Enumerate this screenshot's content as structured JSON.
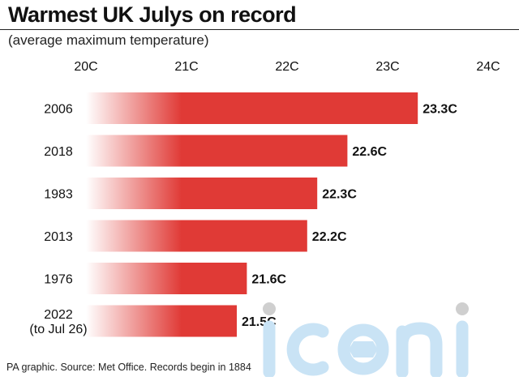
{
  "title": "Warmest UK Julys on record",
  "subtitle": "(average maximum temperature)",
  "source": "PA graphic. Source: Met Office. Records begin in 1884",
  "watermark_text": "iconic",
  "colors": {
    "bar": "#e03a36",
    "bar_fade": "#ffffff",
    "text": "#111111",
    "watermark": "#c9e3f5",
    "watermark_dot": "#cfcfcf"
  },
  "chart_data": {
    "type": "bar",
    "orientation": "horizontal",
    "categories": [
      "2006",
      "2018",
      "1983",
      "2013",
      "1976",
      "2022\n(to Jul 26)"
    ],
    "values": [
      23.3,
      22.6,
      22.3,
      22.2,
      21.6,
      21.5
    ],
    "value_labels": [
      "23.3C",
      "22.6C",
      "22.3C",
      "22.2C",
      "21.6C",
      "21.5C"
    ],
    "xlim": [
      20,
      24
    ],
    "xticks": [
      20,
      21,
      22,
      23,
      24
    ],
    "xtick_labels": [
      "20C",
      "21C",
      "22C",
      "23C",
      "24C"
    ],
    "xaxis_position": "top",
    "grid": false,
    "legend": "none",
    "unit": "C"
  }
}
